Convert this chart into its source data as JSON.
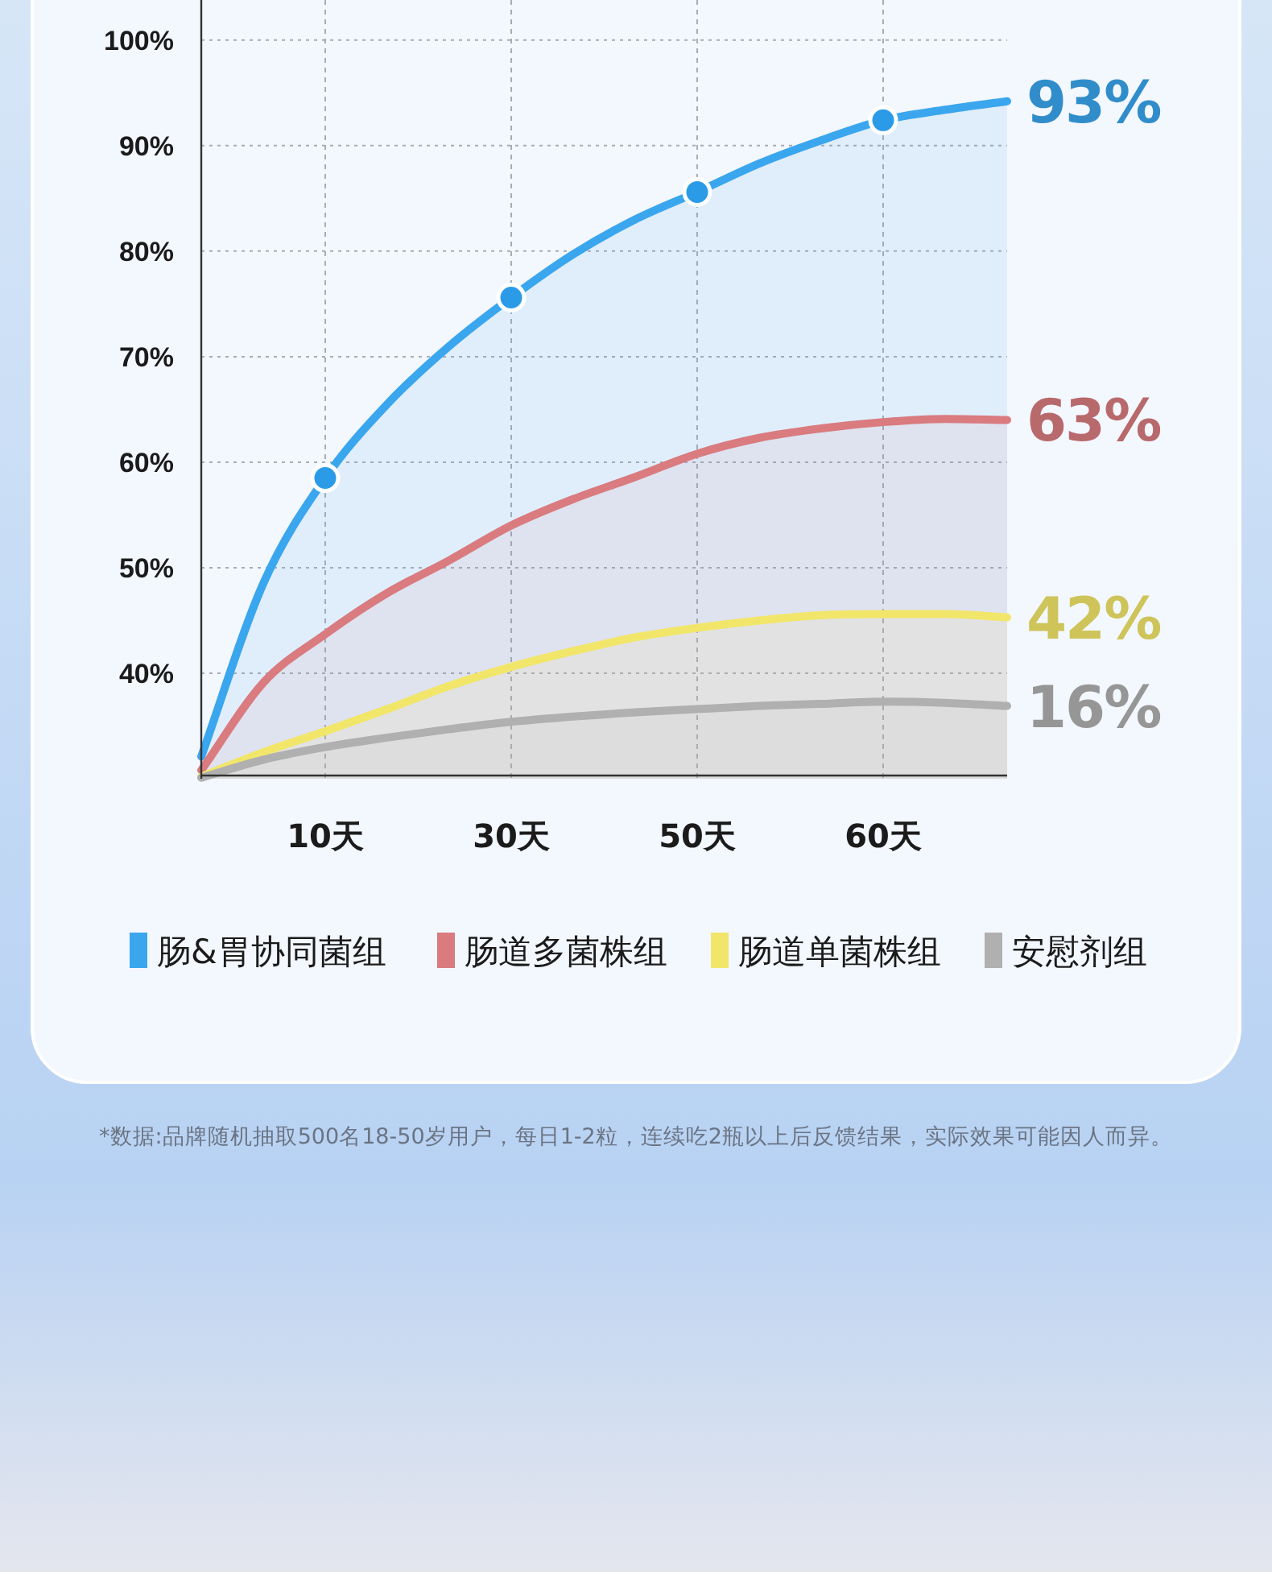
{
  "chart_data": {
    "type": "area",
    "categories": [
      null,
      null,
      "10天",
      null,
      null,
      "30天",
      null,
      null,
      "50天",
      null,
      null,
      "60天",
      null,
      null
    ],
    "ylim": [
      30,
      103.8
    ],
    "yticks": [
      {
        "value": 40,
        "label": "40%"
      },
      {
        "value": 50,
        "label": "50%"
      },
      {
        "value": 60,
        "label": "60%"
      },
      {
        "value": 70,
        "label": "70%"
      },
      {
        "value": 80,
        "label": "80%"
      },
      {
        "value": 90,
        "label": "90%"
      },
      {
        "value": 100,
        "label": "100%"
      }
    ],
    "grid": true,
    "legend": "bottom",
    "line_style": "solid",
    "series": [
      {
        "name": "肠&胃协同菌组",
        "color": "#3aa6ee",
        "values": [
          32.1,
          48.5,
          58.5,
          65.5,
          71.0,
          75.6,
          79.7,
          83.0,
          85.6,
          88.3,
          90.5,
          92.4,
          93.4,
          94.2
        ]
      },
      {
        "name": "肠道多菌株组",
        "color": "#d97b7f",
        "values": [
          30.8,
          39.1,
          43.7,
          47.6,
          50.7,
          54.0,
          56.5,
          58.6,
          60.8,
          62.3,
          63.2,
          63.8,
          64.1,
          64.0
        ]
      },
      {
        "name": "肠道单菌株组",
        "color": "#f2e66a",
        "values": [
          30.2,
          32.5,
          34.5,
          36.6,
          38.8,
          40.6,
          42.1,
          43.4,
          44.3,
          45.0,
          45.5,
          45.6,
          45.6,
          45.3
        ]
      },
      {
        "name": "安慰剂组",
        "color": "#b0b0b0",
        "values": [
          30.1,
          31.8,
          33.0,
          33.9,
          34.7,
          35.4,
          35.9,
          36.3,
          36.6,
          36.9,
          37.1,
          37.3,
          37.2,
          36.9
        ]
      },
      {
        "type": "scatter",
        "marker": "circle",
        "color": "#2b9be8",
        "x": [
          "10天",
          "30天",
          "50天",
          "60天"
        ],
        "values": [
          58.5,
          75.6,
          85.6,
          92.4
        ]
      }
    ],
    "annotations": [
      "93%",
      "63%",
      "42%",
      "16%",
      "*数据:品牌随机抽取500名18-50岁用户，每日1-2粒，连续吃2瓶以上后反馈结果，实际效果可能因人而异。"
    ]
  }
}
